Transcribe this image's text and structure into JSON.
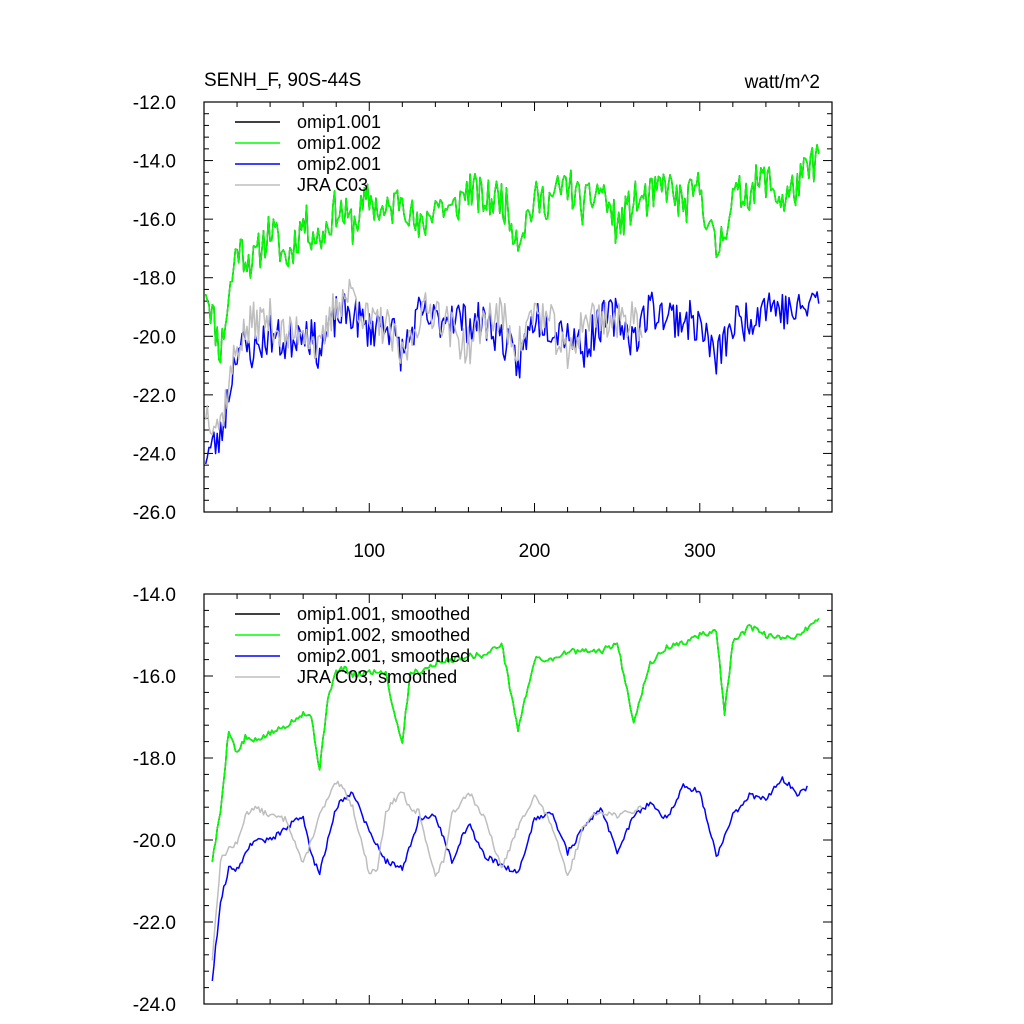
{
  "chart_data": [
    {
      "type": "line",
      "title": "SENH_F, 90S-44S",
      "units": "watt/m^2",
      "ylim": [
        -26.0,
        -12.0
      ],
      "xlim": [
        0,
        380
      ],
      "yticks": [
        -12.0,
        -14.0,
        -16.0,
        -18.0,
        -20.0,
        -22.0,
        -24.0,
        -26.0
      ],
      "yticklabels": [
        "-12.0",
        "-14.0",
        "-16.0",
        "-18.0",
        "-20.0",
        "-22.0",
        "-24.0",
        "-26.0"
      ],
      "xticks": [
        100,
        200,
        300
      ],
      "xticklabels": [
        "100",
        "200",
        "300"
      ],
      "legend_position": "top-left",
      "series": [
        {
          "name": "omip1.001",
          "color": "#000000",
          "x": [
            1,
            10,
            20,
            30,
            40,
            50,
            60,
            70,
            80,
            90,
            100,
            110,
            120,
            130,
            140,
            150,
            160,
            170,
            180,
            190,
            200,
            210,
            220,
            230,
            240,
            250,
            260,
            270,
            280,
            290,
            300,
            310,
            320,
            330,
            340,
            350,
            360,
            372
          ],
          "values": [
            -18.2,
            -20.5,
            -16.9,
            -17.5,
            -16.3,
            -17.4,
            -16.1,
            -16.7,
            -15.6,
            -16.2,
            -15.3,
            -15.9,
            -15.1,
            -16.5,
            -15.4,
            -15.8,
            -14.9,
            -15.4,
            -15.2,
            -16.6,
            -15.4,
            -15.3,
            -14.8,
            -15.6,
            -14.9,
            -16.3,
            -15.4,
            -15.3,
            -14.8,
            -15.6,
            -14.9,
            -17.2,
            -15.3,
            -15.0,
            -14.6,
            -15.4,
            -14.8,
            -13.8
          ]
        },
        {
          "name": "omip1.002",
          "color": "#00ff00",
          "x": [
            1,
            10,
            20,
            30,
            40,
            50,
            60,
            70,
            80,
            90,
            100,
            110,
            120,
            130,
            140,
            150,
            160,
            170,
            180,
            190,
            200,
            210,
            220,
            230,
            240,
            250,
            260,
            270,
            280,
            290,
            300,
            310,
            320,
            330,
            340,
            350,
            360,
            372
          ],
          "values": [
            -18.2,
            -20.5,
            -16.9,
            -17.5,
            -16.3,
            -17.4,
            -16.1,
            -16.7,
            -15.6,
            -16.2,
            -15.3,
            -15.9,
            -15.1,
            -16.5,
            -15.4,
            -15.8,
            -14.9,
            -15.4,
            -15.2,
            -16.6,
            -15.4,
            -15.3,
            -14.8,
            -15.6,
            -14.9,
            -16.3,
            -15.4,
            -15.3,
            -14.8,
            -15.6,
            -14.9,
            -17.2,
            -15.3,
            -15.0,
            -14.6,
            -15.4,
            -14.8,
            -13.8
          ]
        },
        {
          "name": "omip2.001",
          "color": "#0000ff",
          "x": [
            1,
            10,
            20,
            30,
            40,
            50,
            60,
            70,
            80,
            90,
            100,
            110,
            120,
            130,
            140,
            150,
            160,
            170,
            180,
            190,
            200,
            210,
            220,
            230,
            240,
            250,
            260,
            270,
            280,
            290,
            300,
            310,
            320,
            330,
            340,
            350,
            360,
            372
          ],
          "values": [
            -24.0,
            -23.5,
            -20.3,
            -20.5,
            -19.9,
            -20.3,
            -19.6,
            -20.5,
            -19.3,
            -19.2,
            -19.8,
            -19.4,
            -20.6,
            -19.3,
            -19.5,
            -19.2,
            -19.6,
            -19.5,
            -20.0,
            -21.0,
            -19.3,
            -19.6,
            -19.8,
            -20.4,
            -19.5,
            -19.3,
            -20.1,
            -19.0,
            -19.3,
            -19.4,
            -19.6,
            -20.8,
            -19.6,
            -19.4,
            -18.8,
            -19.1,
            -19.2,
            -18.6
          ]
        },
        {
          "name": "JRA C03",
          "color": "#bebebe",
          "x": [
            1,
            10,
            20,
            30,
            40,
            50,
            60,
            70,
            80,
            90,
            100,
            110,
            120,
            130,
            140,
            150,
            160,
            170,
            180,
            190,
            200,
            210,
            220,
            230,
            240,
            250,
            260,
            265
          ],
          "values": [
            -22.5,
            -23.0,
            -20.3,
            -19.5,
            -19.4,
            -20.1,
            -19.6,
            -20.6,
            -18.8,
            -18.5,
            -19.6,
            -19.6,
            -20.8,
            -19.3,
            -19.0,
            -19.8,
            -20.4,
            -19.4,
            -19.3,
            -20.4,
            -19.1,
            -19.6,
            -20.8,
            -19.4,
            -19.3,
            -19.6,
            -19.2,
            -19.8
          ]
        }
      ]
    },
    {
      "type": "line",
      "ylim": [
        -24.0,
        -14.0
      ],
      "xlim": [
        0,
        380
      ],
      "yticks": [
        -14.0,
        -16.0,
        -18.0,
        -20.0,
        -22.0,
        -24.0
      ],
      "yticklabels": [
        "-14.0",
        "-16.0",
        "-18.0",
        "-20.0",
        "-22.0",
        "-24.0"
      ],
      "xticks": [
        100,
        200,
        300
      ],
      "legend_position": "top-left",
      "series": [
        {
          "name": "omip1.001, smoothed",
          "color": "#000000",
          "x": [
            5,
            10,
            15,
            20,
            25,
            30,
            40,
            50,
            60,
            65,
            70,
            75,
            80,
            85,
            90,
            100,
            110,
            115,
            120,
            125,
            130,
            140,
            150,
            160,
            170,
            180,
            190,
            200,
            210,
            220,
            230,
            240,
            250,
            260,
            270,
            280,
            290,
            300,
            310,
            315,
            320,
            330,
            340,
            350,
            360,
            372
          ],
          "values": [
            -20.5,
            -19.3,
            -17.3,
            -17.9,
            -17.5,
            -17.6,
            -17.4,
            -17.2,
            -16.9,
            -17.0,
            -18.3,
            -16.5,
            -15.9,
            -15.8,
            -16.0,
            -15.9,
            -15.9,
            -16.9,
            -17.6,
            -15.9,
            -15.9,
            -15.7,
            -15.6,
            -15.5,
            -15.5,
            -15.2,
            -17.3,
            -15.6,
            -15.6,
            -15.4,
            -15.4,
            -15.4,
            -15.2,
            -17.1,
            -15.7,
            -15.3,
            -15.2,
            -15.0,
            -14.9,
            -16.9,
            -15.2,
            -14.8,
            -15.0,
            -15.1,
            -15.0,
            -14.6
          ]
        },
        {
          "name": "omip1.002, smoothed",
          "color": "#00ff00",
          "x": [
            5,
            10,
            15,
            20,
            25,
            30,
            40,
            50,
            60,
            65,
            70,
            75,
            80,
            85,
            90,
            100,
            110,
            115,
            120,
            125,
            130,
            140,
            150,
            160,
            170,
            180,
            190,
            200,
            210,
            220,
            230,
            240,
            250,
            260,
            270,
            280,
            290,
            300,
            310,
            315,
            320,
            330,
            340,
            350,
            360,
            372
          ],
          "values": [
            -20.5,
            -19.3,
            -17.3,
            -17.9,
            -17.5,
            -17.6,
            -17.4,
            -17.2,
            -16.9,
            -17.0,
            -18.3,
            -16.5,
            -15.9,
            -15.8,
            -16.0,
            -15.9,
            -15.9,
            -16.9,
            -17.6,
            -15.9,
            -15.9,
            -15.7,
            -15.6,
            -15.5,
            -15.5,
            -15.2,
            -17.3,
            -15.6,
            -15.6,
            -15.4,
            -15.4,
            -15.4,
            -15.2,
            -17.1,
            -15.7,
            -15.3,
            -15.2,
            -15.0,
            -14.9,
            -16.9,
            -15.2,
            -14.8,
            -15.0,
            -15.1,
            -15.0,
            -14.6
          ]
        },
        {
          "name": "omip2.001, smoothed",
          "color": "#0000ff",
          "x": [
            5,
            10,
            15,
            20,
            30,
            40,
            50,
            60,
            65,
            70,
            80,
            90,
            100,
            110,
            120,
            130,
            140,
            150,
            160,
            170,
            180,
            190,
            200,
            210,
            220,
            230,
            240,
            250,
            260,
            270,
            280,
            290,
            300,
            310,
            320,
            330,
            340,
            350,
            360,
            365
          ],
          "values": [
            -23.4,
            -21.5,
            -20.7,
            -20.7,
            -20.0,
            -20.0,
            -19.7,
            -19.4,
            -20.4,
            -20.8,
            -19.2,
            -18.8,
            -19.8,
            -20.5,
            -20.7,
            -19.5,
            -19.4,
            -20.5,
            -19.6,
            -20.4,
            -20.6,
            -20.8,
            -19.5,
            -19.3,
            -20.3,
            -19.7,
            -19.2,
            -20.3,
            -19.4,
            -19.1,
            -19.5,
            -18.7,
            -18.8,
            -20.4,
            -19.4,
            -18.9,
            -19.0,
            -18.5,
            -18.9,
            -18.7
          ]
        },
        {
          "name": "JRA C03, smoothed",
          "color": "#bebebe",
          "x": [
            5,
            10,
            15,
            20,
            25,
            30,
            40,
            50,
            60,
            70,
            75,
            80,
            85,
            90,
            100,
            105,
            110,
            120,
            125,
            130,
            140,
            145,
            150,
            160,
            170,
            180,
            185,
            190,
            200,
            210,
            220,
            225,
            230,
            240,
            250,
            260,
            265
          ],
          "values": [
            -22.9,
            -20.5,
            -20.2,
            -20.1,
            -19.4,
            -19.2,
            -19.4,
            -19.5,
            -20.6,
            -19.4,
            -19.0,
            -18.6,
            -18.8,
            -19.2,
            -20.8,
            -20.7,
            -19.3,
            -18.8,
            -19.3,
            -19.3,
            -20.9,
            -20.5,
            -19.4,
            -18.8,
            -19.5,
            -20.7,
            -20.2,
            -19.7,
            -18.9,
            -19.6,
            -20.9,
            -20.3,
            -19.6,
            -19.3,
            -19.4,
            -19.3,
            -19.2
          ]
        }
      ]
    }
  ]
}
